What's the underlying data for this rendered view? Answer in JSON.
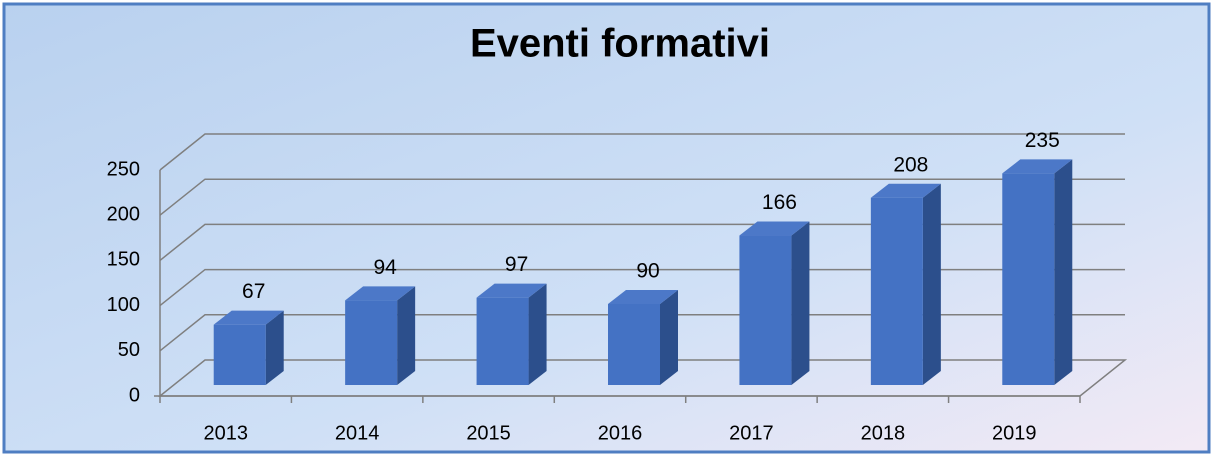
{
  "chart_data": {
    "type": "bar3d",
    "title": "Eventi formativi",
    "categories": [
      "2013",
      "2014",
      "2015",
      "2016",
      "2017",
      "2018",
      "2019"
    ],
    "values": [
      67,
      94,
      97,
      90,
      166,
      208,
      235
    ],
    "color": "#4472c4",
    "ylim": [
      0,
      250
    ],
    "yticks": [
      0,
      50,
      100,
      150,
      200,
      250
    ],
    "grid": true
  }
}
